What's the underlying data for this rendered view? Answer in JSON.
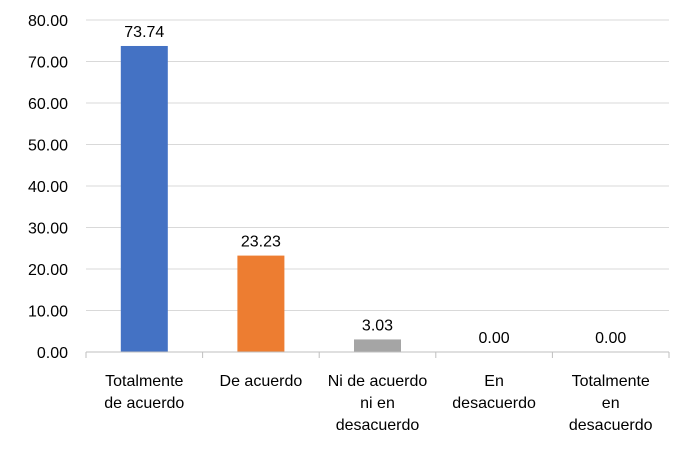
{
  "chart_data": {
    "type": "bar",
    "title": "",
    "xlabel": "",
    "ylabel": "",
    "ylim": [
      0,
      80
    ],
    "y_ticks": [
      "0.00",
      "10.00",
      "20.00",
      "30.00",
      "40.00",
      "50.00",
      "60.00",
      "70.00",
      "80.00"
    ],
    "grid": true,
    "legend": "none",
    "categories": [
      [
        "Totalmente",
        "de acuerdo"
      ],
      [
        "De acuerdo"
      ],
      [
        "Ni de acuerdo",
        "ni en",
        "desacuerdo"
      ],
      [
        "En",
        "desacuerdo"
      ],
      [
        "Totalmente",
        "en",
        "desacuerdo"
      ]
    ],
    "values": [
      73.74,
      23.23,
      3.03,
      0.0,
      0.0
    ],
    "data_labels": [
      "73.74",
      "23.23",
      "3.03",
      "0.00",
      "0.00"
    ],
    "colors": [
      "#4472C4",
      "#ED7D31",
      "#A5A5A5",
      "#FFC000",
      "#5B9BD5"
    ],
    "grid_color": "#D9D9D9",
    "axis_color": "#BFBFBF"
  }
}
